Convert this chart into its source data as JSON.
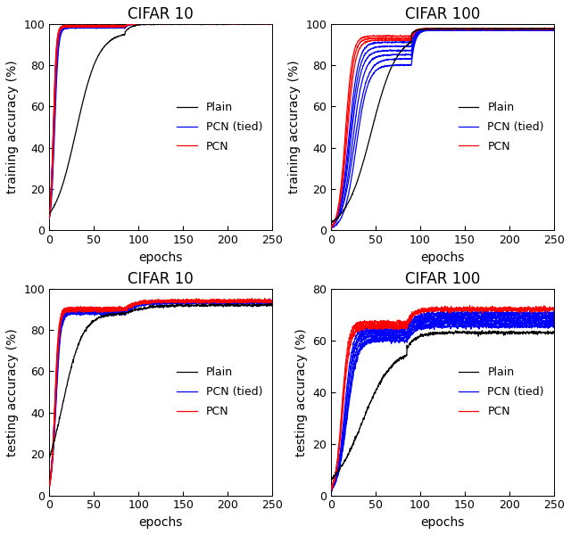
{
  "titles": [
    "CIFAR 10",
    "CIFAR 100",
    "CIFAR 10",
    "CIFAR 100"
  ],
  "ylabels_top": "training accuracy (%)",
  "ylabels_bot": "testing accuracy (%)",
  "xlabel": "epochs",
  "xlim": [
    0,
    250
  ],
  "xticks": [
    0,
    50,
    100,
    150,
    200,
    250
  ],
  "train_ylim": [
    0,
    100
  ],
  "train_yticks": [
    0,
    20,
    40,
    60,
    80,
    100
  ],
  "test_c10_ylim": [
    0,
    100
  ],
  "test_c10_yticks": [
    0,
    20,
    40,
    60,
    80,
    100
  ],
  "test_c100_ylim": [
    0,
    80
  ],
  "test_c100_yticks": [
    0,
    20,
    40,
    60,
    80
  ],
  "legend_entries": [
    "Plain",
    "PCN (tied)",
    "PCN"
  ],
  "background_color": "white",
  "title_fontsize": 12,
  "label_fontsize": 10,
  "tick_fontsize": 9,
  "legend_fontsize": 9,
  "lw": 0.9
}
